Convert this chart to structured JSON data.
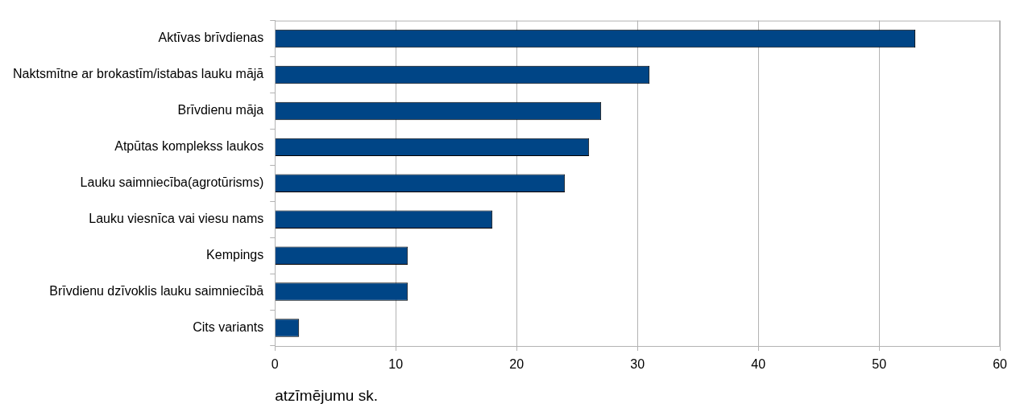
{
  "chart_data": {
    "type": "bar",
    "orientation": "horizontal",
    "xlabel": "atzīmējumu sk.",
    "categories": [
      "Aktīvas brīvdienas",
      "Naktsmītne ar brokastīm/istabas lauku mājā",
      "Brīvdienu māja",
      "Atpūtas komplekss laukos",
      "Lauku saimniecība(agrotūrisms)",
      "Lauku viesnīca vai viesu nams",
      "Kempings",
      "Brīvdienu dzīvoklis lauku saimniecībā",
      "Cits variants"
    ],
    "values": [
      53,
      31,
      27,
      26,
      24,
      18,
      11,
      11,
      2
    ],
    "color": "#004586",
    "xlim": [
      0,
      60
    ],
    "xticks": [
      0,
      10,
      20,
      30,
      40,
      50,
      60
    ],
    "grid": "x",
    "legend": false
  }
}
